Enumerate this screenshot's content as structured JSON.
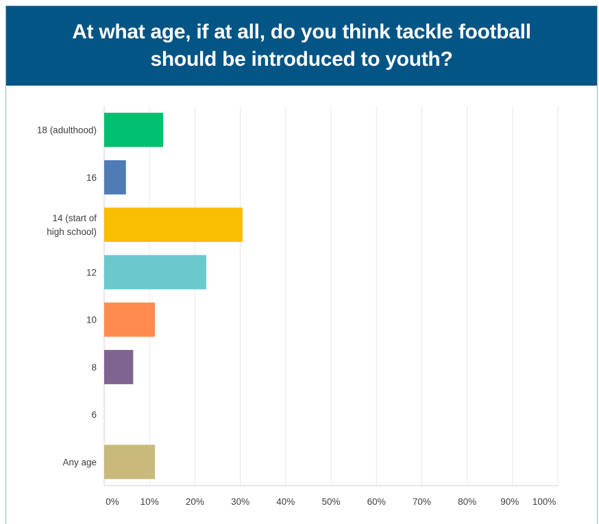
{
  "chart_data": {
    "type": "bar",
    "orientation": "horizontal",
    "title": "At what age, if at all, do you think tackle football should be introduced to youth?",
    "categories": [
      [
        "18 (adulthood)"
      ],
      [
        "16"
      ],
      [
        "14 (start of",
        "high school)"
      ],
      [
        "12"
      ],
      [
        "10"
      ],
      [
        "8"
      ],
      [
        "6"
      ],
      [
        "Any age"
      ]
    ],
    "values": [
      13.0,
      4.8,
      30.5,
      22.5,
      11.2,
      6.4,
      0,
      11.2
    ],
    "colors": [
      "#00bf6f",
      "#507cb6",
      "#f9be00",
      "#6bc8cd",
      "#ff8b4f",
      "#7f6391",
      "#dbdbdb",
      "#c9b97a"
    ],
    "xticks": [
      "0%",
      "10%",
      "20%",
      "30%",
      "40%",
      "50%",
      "60%",
      "70%",
      "80%",
      "90%",
      "100%"
    ],
    "xlim": [
      0,
      100
    ],
    "grid": true,
    "xlabel": "",
    "ylabel": ""
  }
}
